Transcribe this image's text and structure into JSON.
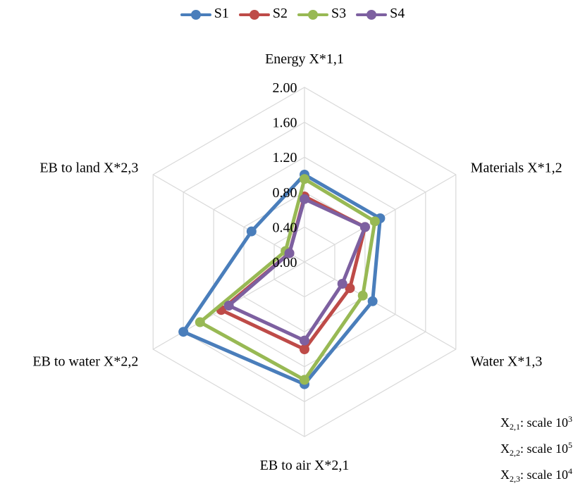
{
  "chart_data": {
    "type": "radar",
    "axes": [
      "Energy X*1,1",
      "Materials X*1,2",
      "Water X*1,3",
      "EB to air X*2,1",
      "EB to water X*2,2",
      "EB to land X*2,3"
    ],
    "r_ticks": [
      "0.00",
      "0.40",
      "0.80",
      "1.20",
      "1.60",
      "2.00"
    ],
    "r_range": [
      0,
      2.0
    ],
    "grid": true,
    "legend_position": "top",
    "series": [
      {
        "name": "S1",
        "color": "#4a7ebb",
        "values": [
          1.0,
          1.0,
          0.9,
          1.4,
          1.6,
          0.7
        ]
      },
      {
        "name": "S2",
        "color": "#be4b48",
        "values": [
          0.75,
          0.8,
          0.6,
          1.0,
          1.1,
          0.2
        ]
      },
      {
        "name": "S3",
        "color": "#98b954",
        "values": [
          0.95,
          0.93,
          0.77,
          1.35,
          1.38,
          0.25
        ]
      },
      {
        "name": "S4",
        "color": "#7d60a0",
        "values": [
          0.72,
          0.8,
          0.5,
          0.9,
          1.0,
          0.2
        ]
      }
    ]
  },
  "scale_notes": [
    {
      "base": "X",
      "sub": "2,1",
      "text": ": scale 10",
      "sup": "3"
    },
    {
      "base": "X",
      "sub": "2,2",
      "text": ": scale 10",
      "sup": "5"
    },
    {
      "base": "X",
      "sub": "2,3",
      "text": ": scale 10",
      "sup": "4"
    }
  ]
}
